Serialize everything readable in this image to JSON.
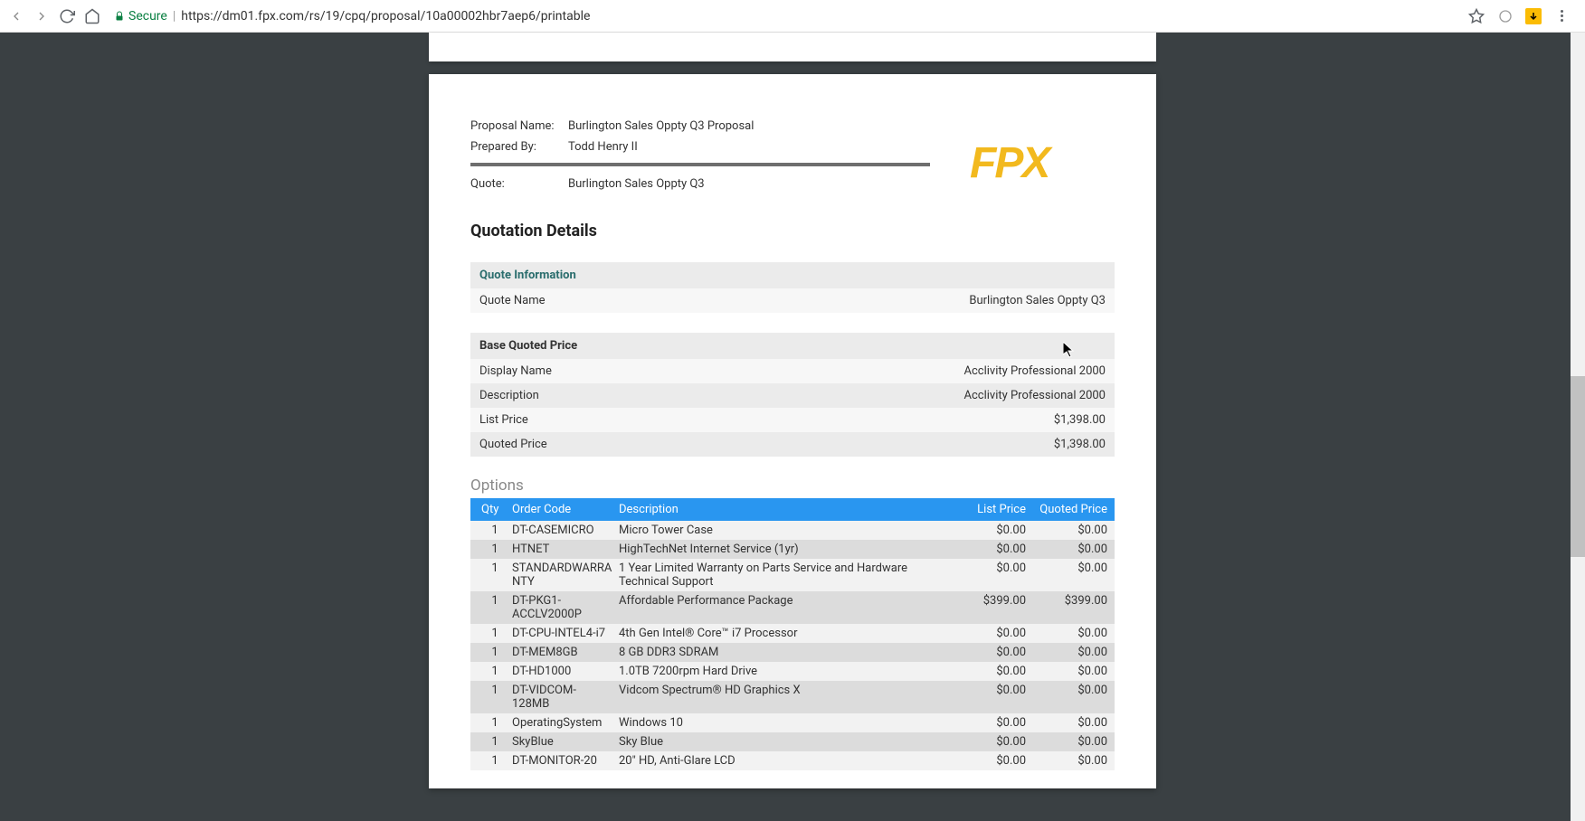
{
  "browser": {
    "secure_label": "Secure",
    "url": "https://dm01.fpx.com/rs/19/cpq/proposal/10a00002hbr7aep6/printable"
  },
  "logo_text": "FPX",
  "meta": {
    "proposal_name_label": "Proposal Name:",
    "proposal_name_value": "Burlington Sales Oppty Q3 Proposal",
    "prepared_by_label": "Prepared By:",
    "prepared_by_value": "Todd Henry II",
    "quote_label": "Quote:",
    "quote_value": "Burlington Sales Oppty Q3"
  },
  "section_heading": "Quotation Details",
  "quote_info": {
    "header": "Quote Information",
    "name_label": "Quote Name",
    "name_value": "Burlington Sales Oppty Q3"
  },
  "base_price": {
    "header": "Base Quoted Price",
    "rows": [
      {
        "label": "Display Name",
        "value": "Acclivity Professional 2000"
      },
      {
        "label": "Description",
        "value": "Acclivity Professional 2000"
      },
      {
        "label": "List Price",
        "value": "$1,398.00"
      },
      {
        "label": "Quoted Price",
        "value": "$1,398.00"
      }
    ]
  },
  "options": {
    "heading": "Options",
    "columns": {
      "qty": "Qty",
      "code": "Order Code",
      "desc": "Description",
      "list": "List Price",
      "quoted": "Quoted Price"
    },
    "rows": [
      {
        "qty": "1",
        "code": "DT-CASEMICRO",
        "desc": "Micro Tower Case",
        "list": "$0.00",
        "quoted": "$0.00"
      },
      {
        "qty": "1",
        "code": "HTNET",
        "desc": "HighTechNet Internet Service (1yr)",
        "list": "$0.00",
        "quoted": "$0.00"
      },
      {
        "qty": "1",
        "code": "STANDARDWARRANTY",
        "desc": "1 Year Limited Warranty on Parts Service and Hardware Technical Support",
        "list": "$0.00",
        "quoted": "$0.00"
      },
      {
        "qty": "1",
        "code": "DT-PKG1-ACCLV2000P",
        "desc": "Affordable Performance Package",
        "list": "$399.00",
        "quoted": "$399.00"
      },
      {
        "qty": "1",
        "code": "DT-CPU-INTEL4-i7",
        "desc": "4th Gen Intel® Core™ i7 Processor",
        "list": "$0.00",
        "quoted": "$0.00"
      },
      {
        "qty": "1",
        "code": "DT-MEM8GB",
        "desc": "8 GB DDR3 SDRAM",
        "list": "$0.00",
        "quoted": "$0.00"
      },
      {
        "qty": "1",
        "code": "DT-HD1000",
        "desc": "1.0TB  7200rpm Hard Drive",
        "list": "$0.00",
        "quoted": "$0.00"
      },
      {
        "qty": "1",
        "code": "DT-VIDCOM-128MB",
        "desc": "Vidcom Spectrum® HD Graphics X",
        "list": "$0.00",
        "quoted": "$0.00"
      },
      {
        "qty": "1",
        "code": "OperatingSystem",
        "desc": "Windows 10",
        "list": "$0.00",
        "quoted": "$0.00"
      },
      {
        "qty": "1",
        "code": "SkyBlue",
        "desc": "Sky Blue",
        "list": "$0.00",
        "quoted": "$0.00"
      },
      {
        "qty": "1",
        "code": "DT-MONITOR-20",
        "desc": "20\" HD, Anti-Glare LCD",
        "list": "$0.00",
        "quoted": "$0.00"
      }
    ]
  },
  "colors": {
    "page_bg": "#3a4043",
    "accent_blue": "#2996f0",
    "logo_yellow": "#f2b91e",
    "info_header_teal": "#2a6d6d"
  }
}
